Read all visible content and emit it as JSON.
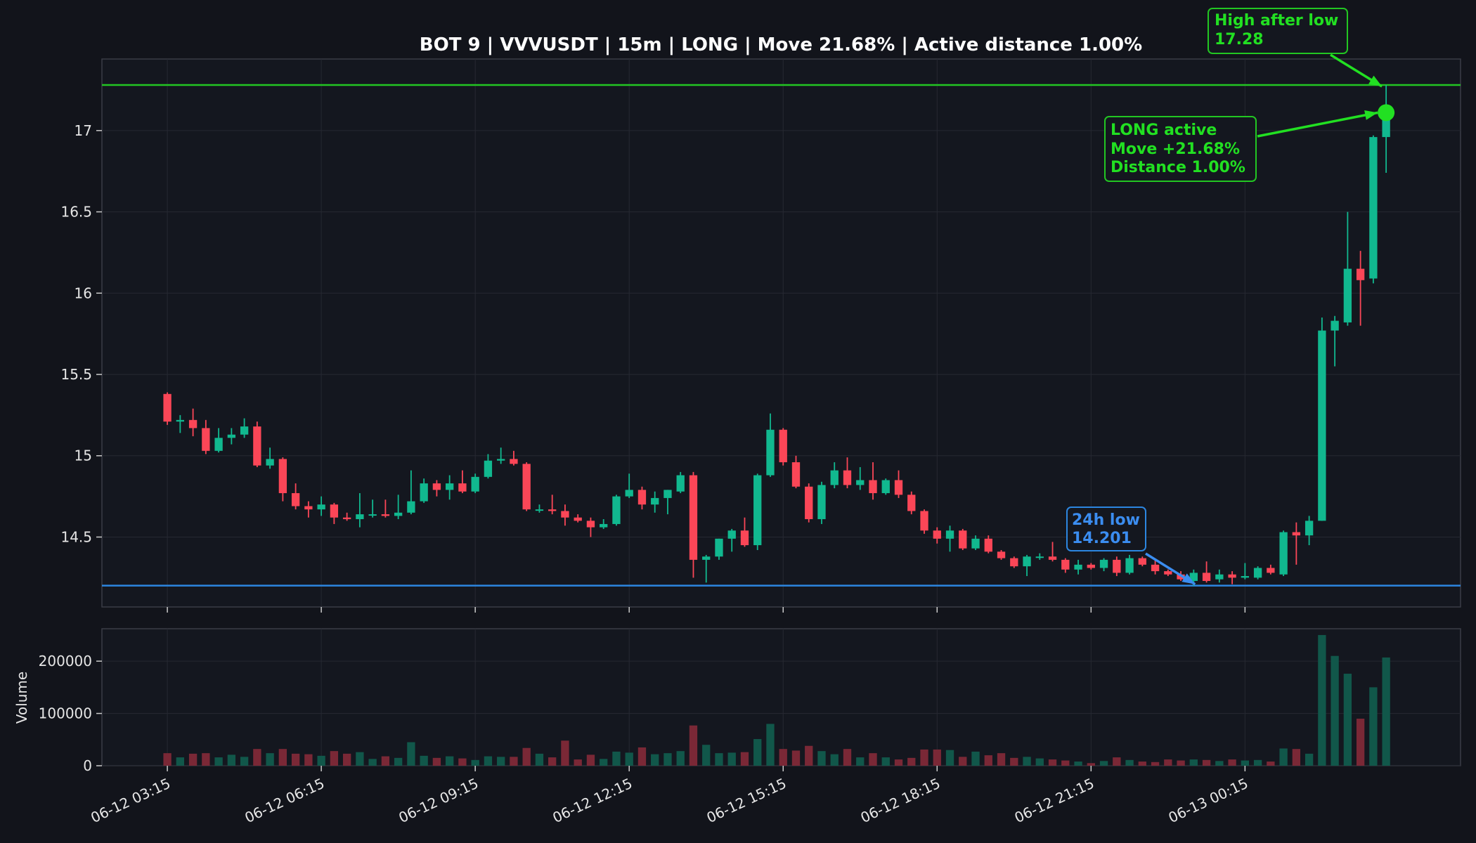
{
  "chart_data": {
    "type": "candlestick",
    "title": "BOT 9 | VVVUSDT | 15m | LONG | Move 21.68% | Active distance 1.00%",
    "ylabel_volume": "Volume",
    "price_ylim": [
      14.07,
      17.44
    ],
    "price_yticks": [
      "14.5",
      "15",
      "15.5",
      "16",
      "16.5",
      "17"
    ],
    "volume_ylim": [
      0,
      262000
    ],
    "volume_yticks": [
      "0",
      "100000",
      "200000"
    ],
    "x_tick_labels": [
      "06-12 03:15",
      "06-12 06:15",
      "06-12 09:15",
      "06-12 12:15",
      "06-12 15:15",
      "06-12 18:15",
      "06-12 21:15",
      "06-13 00:15"
    ],
    "x_tick_index": [
      0,
      12,
      24,
      36,
      48,
      60,
      72,
      84
    ],
    "x_range": [
      -5.1,
      100.8
    ],
    "high_after_low": 17.28,
    "low_24h": 14.201,
    "active_index": 95,
    "active_price": 17.11,
    "low_index": 80,
    "annotations": {
      "high": [
        "High after low",
        "17.28"
      ],
      "long": [
        "LONG active",
        "Move +21.68%",
        "Distance 1.00%"
      ],
      "low": [
        "24h low",
        "14.201"
      ]
    },
    "colors": {
      "up": "#11b88f",
      "down": "#fb4657",
      "high_line": "#22c622",
      "low_line": "#2c86e0",
      "ann_green": "#22e022",
      "ann_blue": "#3b8df0"
    },
    "candles": [
      [
        15.38,
        15.39,
        15.19,
        15.21
      ],
      [
        15.21,
        15.25,
        15.14,
        15.22
      ],
      [
        15.22,
        15.29,
        15.12,
        15.17
      ],
      [
        15.17,
        15.22,
        15.01,
        15.03
      ],
      [
        15.03,
        15.17,
        15.02,
        15.11
      ],
      [
        15.11,
        15.17,
        15.07,
        15.13
      ],
      [
        15.13,
        15.23,
        15.11,
        15.18
      ],
      [
        15.18,
        15.21,
        14.93,
        14.94
      ],
      [
        14.94,
        15.05,
        14.92,
        14.98
      ],
      [
        14.98,
        14.99,
        14.72,
        14.77
      ],
      [
        14.77,
        14.83,
        14.67,
        14.69
      ],
      [
        14.69,
        14.72,
        14.62,
        14.67
      ],
      [
        14.67,
        14.75,
        14.63,
        14.7
      ],
      [
        14.7,
        14.71,
        14.58,
        14.62
      ],
      [
        14.62,
        14.65,
        14.6,
        14.61
      ],
      [
        14.61,
        14.77,
        14.56,
        14.64
      ],
      [
        14.64,
        14.73,
        14.62,
        14.64
      ],
      [
        14.64,
        14.73,
        14.62,
        14.63
      ],
      [
        14.63,
        14.76,
        14.61,
        14.65
      ],
      [
        14.65,
        14.91,
        14.64,
        14.72
      ],
      [
        14.72,
        14.86,
        14.71,
        14.83
      ],
      [
        14.83,
        14.85,
        14.75,
        14.79
      ],
      [
        14.79,
        14.88,
        14.73,
        14.83
      ],
      [
        14.83,
        14.91,
        14.77,
        14.78
      ],
      [
        14.78,
        14.89,
        14.77,
        14.87
      ],
      [
        14.87,
        15.01,
        14.86,
        14.97
      ],
      [
        14.97,
        15.05,
        14.95,
        14.98
      ],
      [
        14.98,
        15.03,
        14.94,
        14.95
      ],
      [
        14.95,
        14.96,
        14.66,
        14.67
      ],
      [
        14.67,
        14.7,
        14.65,
        14.67
      ],
      [
        14.67,
        14.76,
        14.64,
        14.66
      ],
      [
        14.66,
        14.7,
        14.57,
        14.62
      ],
      [
        14.62,
        14.64,
        14.59,
        14.6
      ],
      [
        14.6,
        14.62,
        14.5,
        14.56
      ],
      [
        14.56,
        14.61,
        14.55,
        14.58
      ],
      [
        14.58,
        14.76,
        14.57,
        14.75
      ],
      [
        14.75,
        14.89,
        14.74,
        14.79
      ],
      [
        14.79,
        14.81,
        14.67,
        14.7
      ],
      [
        14.7,
        14.78,
        14.65,
        14.74
      ],
      [
        14.74,
        14.79,
        14.64,
        14.79
      ],
      [
        14.78,
        14.9,
        14.77,
        14.88
      ],
      [
        14.88,
        14.9,
        14.25,
        14.36
      ],
      [
        14.36,
        14.39,
        14.22,
        14.38
      ],
      [
        14.38,
        14.49,
        14.36,
        14.49
      ],
      [
        14.49,
        14.55,
        14.41,
        14.54
      ],
      [
        14.54,
        14.62,
        14.44,
        14.45
      ],
      [
        14.45,
        14.89,
        14.42,
        14.88
      ],
      [
        14.88,
        15.26,
        14.87,
        15.16
      ],
      [
        15.16,
        15.17,
        14.94,
        14.96
      ],
      [
        14.96,
        15.0,
        14.8,
        14.81
      ],
      [
        14.81,
        14.83,
        14.59,
        14.61
      ],
      [
        14.61,
        14.84,
        14.58,
        14.82
      ],
      [
        14.82,
        14.96,
        14.8,
        14.91
      ],
      [
        14.91,
        14.99,
        14.8,
        14.82
      ],
      [
        14.82,
        14.93,
        14.79,
        14.85
      ],
      [
        14.85,
        14.96,
        14.73,
        14.77
      ],
      [
        14.77,
        14.86,
        14.76,
        14.85
      ],
      [
        14.85,
        14.91,
        14.74,
        14.76
      ],
      [
        14.76,
        14.78,
        14.64,
        14.66
      ],
      [
        14.66,
        14.67,
        14.52,
        14.54
      ],
      [
        14.54,
        14.56,
        14.46,
        14.49
      ],
      [
        14.49,
        14.57,
        14.41,
        14.54
      ],
      [
        14.54,
        14.55,
        14.42,
        14.43
      ],
      [
        14.43,
        14.51,
        14.42,
        14.49
      ],
      [
        14.49,
        14.51,
        14.4,
        14.41
      ],
      [
        14.41,
        14.42,
        14.36,
        14.37
      ],
      [
        14.37,
        14.38,
        14.31,
        14.32
      ],
      [
        14.32,
        14.39,
        14.26,
        14.38
      ],
      [
        14.38,
        14.4,
        14.36,
        14.38
      ],
      [
        14.38,
        14.47,
        14.35,
        14.36
      ],
      [
        14.36,
        14.37,
        14.28,
        14.3
      ],
      [
        14.3,
        14.36,
        14.27,
        14.33
      ],
      [
        14.33,
        14.34,
        14.3,
        14.31
      ],
      [
        14.31,
        14.37,
        14.29,
        14.36
      ],
      [
        14.36,
        14.38,
        14.26,
        14.28
      ],
      [
        14.28,
        14.39,
        14.27,
        14.37
      ],
      [
        14.37,
        14.38,
        14.32,
        14.33
      ],
      [
        14.33,
        14.36,
        14.27,
        14.29
      ],
      [
        14.29,
        14.3,
        14.26,
        14.27
      ],
      [
        14.27,
        14.29,
        14.23,
        14.24
      ],
      [
        14.23,
        14.3,
        14.2,
        14.28
      ],
      [
        14.28,
        14.35,
        14.22,
        14.23
      ],
      [
        14.24,
        14.3,
        14.22,
        14.27
      ],
      [
        14.27,
        14.29,
        14.21,
        14.25
      ],
      [
        14.25,
        14.34,
        14.24,
        14.26
      ],
      [
        14.25,
        14.32,
        14.24,
        14.31
      ],
      [
        14.31,
        14.33,
        14.27,
        14.28
      ],
      [
        14.27,
        14.54,
        14.26,
        14.53
      ],
      [
        14.53,
        14.59,
        14.33,
        14.51
      ],
      [
        14.51,
        14.63,
        14.45,
        14.6
      ],
      [
        14.6,
        15.85,
        14.6,
        15.77
      ],
      [
        15.77,
        15.86,
        15.55,
        15.83
      ],
      [
        15.82,
        16.5,
        15.8,
        16.15
      ],
      [
        16.15,
        16.26,
        15.8,
        16.08
      ],
      [
        16.09,
        16.97,
        16.06,
        16.96
      ],
      [
        16.96,
        17.28,
        16.74,
        17.11
      ]
    ],
    "volume": [
      24000,
      16000,
      23000,
      24000,
      16000,
      21000,
      17000,
      32000,
      24000,
      32000,
      23000,
      22000,
      19000,
      28000,
      23000,
      26000,
      13000,
      18000,
      15000,
      45000,
      19000,
      15000,
      18000,
      14000,
      11000,
      18000,
      17000,
      17000,
      34000,
      23000,
      16000,
      48000,
      12000,
      21000,
      13000,
      27000,
      25000,
      35000,
      22000,
      24000,
      28000,
      77000,
      40000,
      24000,
      25000,
      26000,
      51000,
      80000,
      32000,
      29000,
      38000,
      28000,
      22000,
      32000,
      16000,
      24000,
      16000,
      12000,
      15000,
      31000,
      31000,
      30000,
      17000,
      27000,
      20000,
      24000,
      15000,
      17000,
      14000,
      12000,
      10000,
      8000,
      5000,
      9000,
      16000,
      11000,
      8000,
      7000,
      12000,
      10000,
      12000,
      11000,
      9000,
      12000,
      10000,
      11000,
      8000,
      33000,
      32000,
      23000,
      250000,
      210000,
      176000,
      90000,
      150000,
      207000
    ]
  }
}
